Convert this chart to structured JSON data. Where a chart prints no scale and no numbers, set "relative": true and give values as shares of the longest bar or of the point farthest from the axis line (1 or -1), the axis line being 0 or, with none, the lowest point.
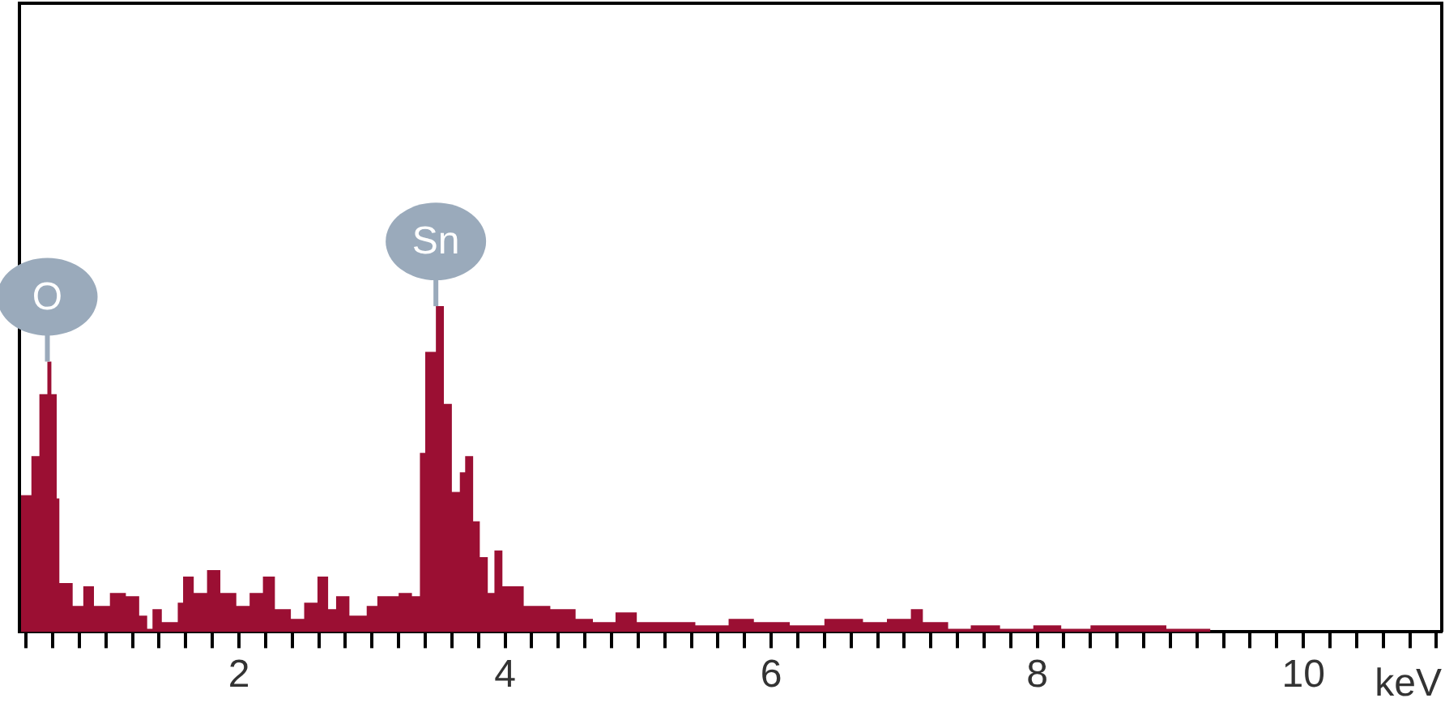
{
  "chart_data": {
    "type": "area",
    "relative": true,
    "xlabel": "keV",
    "x": [
      0.35,
      0.36,
      0.44,
      0.5,
      0.56,
      0.59,
      0.63,
      0.65,
      0.75,
      0.83,
      0.91,
      1.03,
      1.15,
      1.25,
      1.31,
      1.35,
      1.42,
      1.54,
      1.58,
      1.66,
      1.76,
      1.86,
      1.98,
      2.08,
      2.18,
      2.27,
      2.39,
      2.49,
      2.59,
      2.67,
      2.73,
      2.83,
      2.96,
      3.04,
      3.2,
      3.3,
      3.36,
      3.4,
      3.48,
      3.54,
      3.6,
      3.66,
      3.7,
      3.76,
      3.81,
      3.87,
      3.92,
      3.98,
      4.12,
      4.14,
      4.3,
      4.34,
      4.53,
      4.66,
      4.83,
      4.99,
      5.22,
      5.43,
      5.68,
      5.87,
      6.14,
      6.4,
      6.69,
      6.87,
      7.05,
      7.14,
      7.33,
      7.5,
      7.72,
      7.97,
      8.18,
      8.4,
      8.8,
      8.97,
      9.3,
      10.7,
      11.0
    ],
    "series": [
      {
        "color": "#9b0f33",
        "values": [
          0.42,
          0.42,
          0.54,
          0.73,
          0.83,
          0.73,
          0.41,
          0.15,
          0.08,
          0.14,
          0.08,
          0.12,
          0.11,
          0.05,
          0.01,
          0.07,
          0.03,
          0.09,
          0.17,
          0.12,
          0.19,
          0.12,
          0.08,
          0.12,
          0.17,
          0.07,
          0.04,
          0.09,
          0.17,
          0.07,
          0.11,
          0.05,
          0.08,
          0.11,
          0.12,
          0.11,
          0.55,
          0.86,
          1.0,
          0.7,
          0.43,
          0.49,
          0.54,
          0.34,
          0.23,
          0.12,
          0.25,
          0.14,
          0.14,
          0.08,
          0.08,
          0.07,
          0.04,
          0.03,
          0.06,
          0.03,
          0.03,
          0.02,
          0.04,
          0.03,
          0.02,
          0.04,
          0.03,
          0.04,
          0.07,
          0.03,
          0.01,
          0.02,
          0.01,
          0.02,
          0.01,
          0.02,
          0.02,
          0.01,
          0,
          0,
          0
        ]
      }
    ],
    "xlim": [
      0.35,
      11.04
    ],
    "xticks": [
      {
        "value": 0.4,
        "label": null
      },
      {
        "value": 0.6,
        "label": null
      },
      {
        "value": 0.8,
        "label": null
      },
      {
        "value": 1,
        "label": null
      },
      {
        "value": 1.2,
        "label": null
      },
      {
        "value": 1.4,
        "label": null
      },
      {
        "value": 1.6,
        "label": null
      },
      {
        "value": 1.8,
        "label": null
      },
      2,
      {
        "value": 2.2,
        "label": null
      },
      {
        "value": 2.4,
        "label": null
      },
      {
        "value": 2.6,
        "label": null
      },
      {
        "value": 2.8,
        "label": null
      },
      {
        "value": 3,
        "label": null
      },
      {
        "value": 3.2,
        "label": null
      },
      {
        "value": 3.4,
        "label": null
      },
      {
        "value": 3.6,
        "label": null
      },
      {
        "value": 3.8,
        "label": null
      },
      4,
      {
        "value": 4.2,
        "label": null
      },
      {
        "value": 4.4,
        "label": null
      },
      {
        "value": 4.6,
        "label": null
      },
      {
        "value": 4.8,
        "label": null
      },
      {
        "value": 5,
        "label": null
      },
      {
        "value": 5.2,
        "label": null
      },
      {
        "value": 5.4,
        "label": null
      },
      {
        "value": 5.6,
        "label": null
      },
      {
        "value": 5.8,
        "label": null
      },
      6,
      {
        "value": 6.2,
        "label": null
      },
      {
        "value": 6.4,
        "label": null
      },
      {
        "value": 6.6,
        "label": null
      },
      {
        "value": 6.8,
        "label": null
      },
      {
        "value": 7,
        "label": null
      },
      {
        "value": 7.2,
        "label": null
      },
      {
        "value": 7.4,
        "label": null
      },
      {
        "value": 7.6,
        "label": null
      },
      {
        "value": 7.8,
        "label": null
      },
      8,
      {
        "value": 8.2,
        "label": null
      },
      {
        "value": 8.4,
        "label": null
      },
      {
        "value": 8.6,
        "label": null
      },
      {
        "value": 8.8,
        "label": null
      },
      {
        "value": 9,
        "label": null
      },
      {
        "value": 9.2,
        "label": null
      },
      {
        "value": 9.4,
        "label": null
      },
      {
        "value": 9.6,
        "label": null
      },
      {
        "value": 9.8,
        "label": null
      },
      10,
      {
        "value": 10.2,
        "label": null
      },
      {
        "value": 10.4,
        "label": null
      },
      {
        "value": 10.6,
        "label": null
      },
      {
        "value": 10.8,
        "label": null
      },
      {
        "value": 11,
        "label": null
      }
    ],
    "annotations": [
      {
        "text": "O",
        "x": 0.56,
        "y": 0.83
      },
      {
        "text": "Sn",
        "x": 3.48,
        "y": 1.0
      }
    ],
    "grid": false,
    "legend": false
  }
}
